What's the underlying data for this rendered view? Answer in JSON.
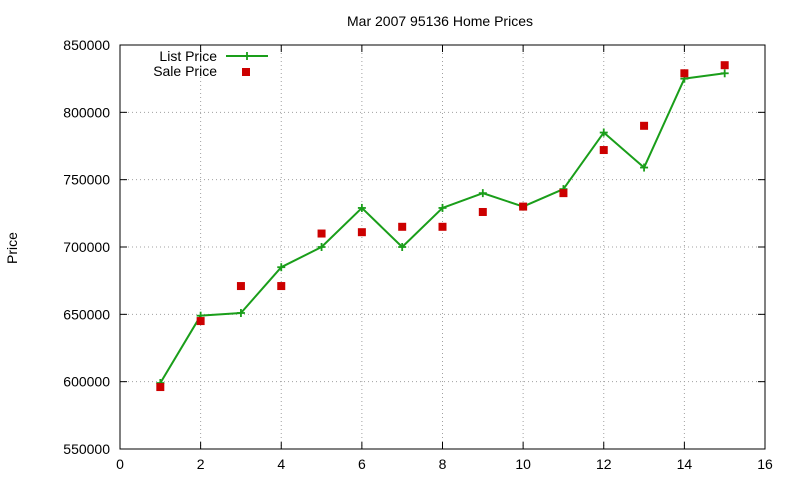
{
  "chart_data": {
    "type": "line",
    "title": "Mar 2007 95136 Home Prices",
    "xlabel": "",
    "ylabel": "Price",
    "xlim": [
      0,
      16
    ],
    "ylim": [
      550000,
      850000
    ],
    "x_ticks": [
      0,
      2,
      4,
      6,
      8,
      10,
      12,
      14,
      16
    ],
    "y_ticks": [
      550000,
      600000,
      650000,
      700000,
      750000,
      800000,
      850000
    ],
    "x_tick_labels": [
      "0",
      "2",
      "4",
      "6",
      "8",
      "10",
      "12",
      "14",
      "16"
    ],
    "y_tick_labels": [
      "550000",
      "600000",
      "650000",
      "700000",
      "750000",
      "800000",
      "850000"
    ],
    "grid": true,
    "legend_position": "top-left",
    "series": [
      {
        "name": "List Price",
        "style": "line-with-plus-markers",
        "color": "#1a9e1a",
        "points": [
          [
            1,
            599000
          ],
          [
            2,
            649000
          ],
          [
            3,
            651000
          ],
          [
            4,
            685000
          ],
          [
            5,
            700000
          ],
          [
            6,
            729000
          ],
          [
            7,
            700000
          ],
          [
            8,
            729000
          ],
          [
            9,
            740000
          ],
          [
            10,
            730000
          ],
          [
            11,
            743000
          ],
          [
            12,
            785000
          ],
          [
            13,
            759000
          ],
          [
            14,
            825000
          ],
          [
            15,
            829000
          ]
        ]
      },
      {
        "name": "Sale Price",
        "style": "square-markers",
        "color": "#cc0000",
        "points": [
          [
            1,
            596000
          ],
          [
            2,
            645000
          ],
          [
            3,
            671000
          ],
          [
            4,
            671000
          ],
          [
            5,
            710000
          ],
          [
            6,
            711000
          ],
          [
            7,
            715000
          ],
          [
            8,
            715000
          ],
          [
            9,
            726000
          ],
          [
            10,
            730000
          ],
          [
            11,
            740000
          ],
          [
            12,
            772000
          ],
          [
            13,
            790000
          ],
          [
            14,
            829000
          ],
          [
            15,
            835000
          ]
        ]
      }
    ]
  }
}
